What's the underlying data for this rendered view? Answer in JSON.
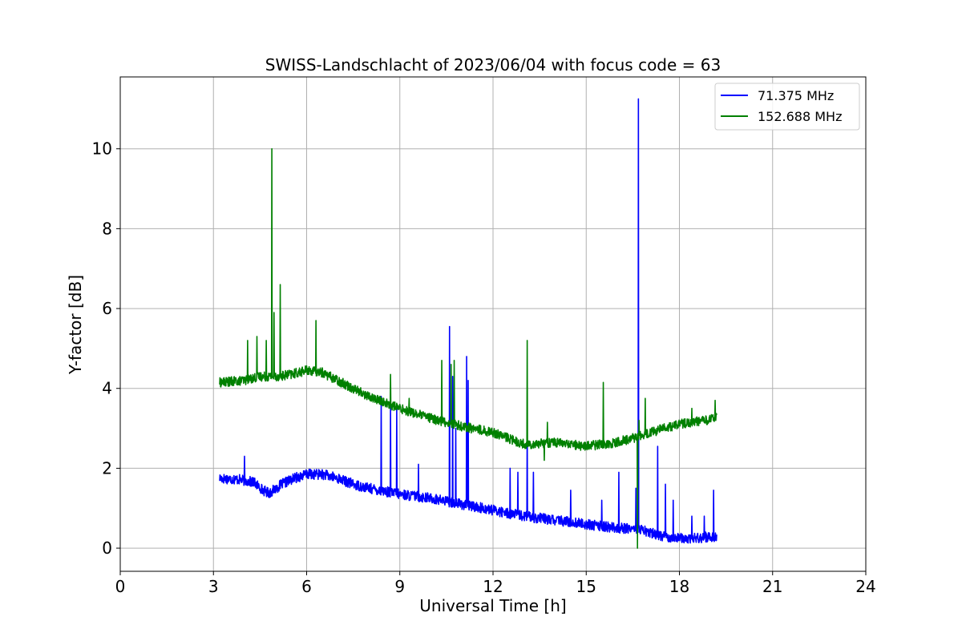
{
  "chart_data": {
    "type": "line",
    "title": "SWISS-Landschlacht of 2023/06/04 with focus code = 63",
    "xlabel": "Universal Time [h]",
    "ylabel": "Y-factor [dB]",
    "xlim": [
      0,
      24
    ],
    "ylim": [
      -0.58,
      11.8
    ],
    "xticks": [
      "0",
      "3",
      "6",
      "9",
      "12",
      "15",
      "18",
      "21",
      "24"
    ],
    "yticks": [
      "0",
      "2",
      "4",
      "6",
      "8",
      "10"
    ],
    "grid": true,
    "legend_position": "top-right",
    "series": [
      {
        "name": "71.375 MHz",
        "color": "#0000ff",
        "baseline": [
          [
            3.2,
            1.75
          ],
          [
            3.8,
            1.72
          ],
          [
            4.3,
            1.65
          ],
          [
            4.6,
            1.45
          ],
          [
            4.8,
            1.38
          ],
          [
            5.2,
            1.6
          ],
          [
            5.6,
            1.75
          ],
          [
            6.0,
            1.85
          ],
          [
            6.5,
            1.85
          ],
          [
            7.0,
            1.75
          ],
          [
            7.5,
            1.6
          ],
          [
            8.0,
            1.5
          ],
          [
            9.0,
            1.35
          ],
          [
            10.0,
            1.25
          ],
          [
            11.0,
            1.1
          ],
          [
            12.0,
            0.95
          ],
          [
            13.0,
            0.8
          ],
          [
            14.0,
            0.7
          ],
          [
            15.0,
            0.6
          ],
          [
            16.0,
            0.5
          ],
          [
            16.6,
            0.5
          ],
          [
            17.0,
            0.4
          ],
          [
            17.5,
            0.3
          ],
          [
            18.0,
            0.25
          ],
          [
            18.5,
            0.25
          ],
          [
            19.2,
            0.3
          ]
        ],
        "spikes": [
          [
            4.0,
            2.3
          ],
          [
            8.4,
            3.8
          ],
          [
            8.7,
            3.6
          ],
          [
            8.9,
            3.5
          ],
          [
            9.6,
            2.1
          ],
          [
            10.6,
            5.55
          ],
          [
            10.7,
            4.3
          ],
          [
            10.8,
            3.0
          ],
          [
            11.15,
            4.8
          ],
          [
            11.2,
            4.2
          ],
          [
            12.55,
            2.0
          ],
          [
            12.8,
            1.9
          ],
          [
            13.1,
            3.15
          ],
          [
            13.3,
            1.9
          ],
          [
            14.5,
            1.45
          ],
          [
            15.5,
            1.2
          ],
          [
            16.05,
            1.9
          ],
          [
            16.6,
            1.5
          ],
          [
            16.68,
            11.25
          ],
          [
            17.3,
            2.55
          ],
          [
            17.55,
            1.6
          ],
          [
            17.8,
            1.2
          ],
          [
            18.4,
            0.8
          ],
          [
            18.8,
            0.8
          ],
          [
            19.1,
            1.45
          ]
        ]
      },
      {
        "name": "152.688 MHz",
        "color": "#008000",
        "baseline": [
          [
            3.2,
            4.15
          ],
          [
            4.0,
            4.2
          ],
          [
            4.5,
            4.3
          ],
          [
            5.0,
            4.3
          ],
          [
            5.5,
            4.35
          ],
          [
            6.0,
            4.45
          ],
          [
            6.5,
            4.4
          ],
          [
            7.0,
            4.2
          ],
          [
            7.5,
            4.0
          ],
          [
            8.0,
            3.8
          ],
          [
            9.0,
            3.5
          ],
          [
            10.0,
            3.25
          ],
          [
            11.0,
            3.05
          ],
          [
            12.0,
            2.9
          ],
          [
            13.0,
            2.6
          ],
          [
            14.0,
            2.65
          ],
          [
            15.0,
            2.55
          ],
          [
            16.0,
            2.65
          ],
          [
            16.7,
            2.8
          ],
          [
            17.5,
            3.0
          ],
          [
            18.0,
            3.1
          ],
          [
            19.2,
            3.25
          ]
        ],
        "spikes": [
          [
            4.1,
            5.2
          ],
          [
            4.4,
            5.3
          ],
          [
            4.7,
            5.2
          ],
          [
            4.88,
            10.0
          ],
          [
            4.95,
            5.9
          ],
          [
            5.15,
            6.6
          ],
          [
            6.3,
            5.7
          ],
          [
            8.7,
            4.35
          ],
          [
            9.3,
            3.75
          ],
          [
            10.35,
            4.7
          ],
          [
            10.65,
            4.6
          ],
          [
            10.75,
            4.7
          ],
          [
            13.1,
            5.2
          ],
          [
            13.75,
            3.15
          ],
          [
            15.55,
            4.15
          ],
          [
            16.7,
            3.2
          ],
          [
            16.9,
            3.75
          ],
          [
            18.4,
            3.5
          ],
          [
            19.15,
            3.7
          ]
        ],
        "dips": [
          [
            13.65,
            2.2
          ],
          [
            16.65,
            0.0
          ]
        ]
      }
    ]
  }
}
